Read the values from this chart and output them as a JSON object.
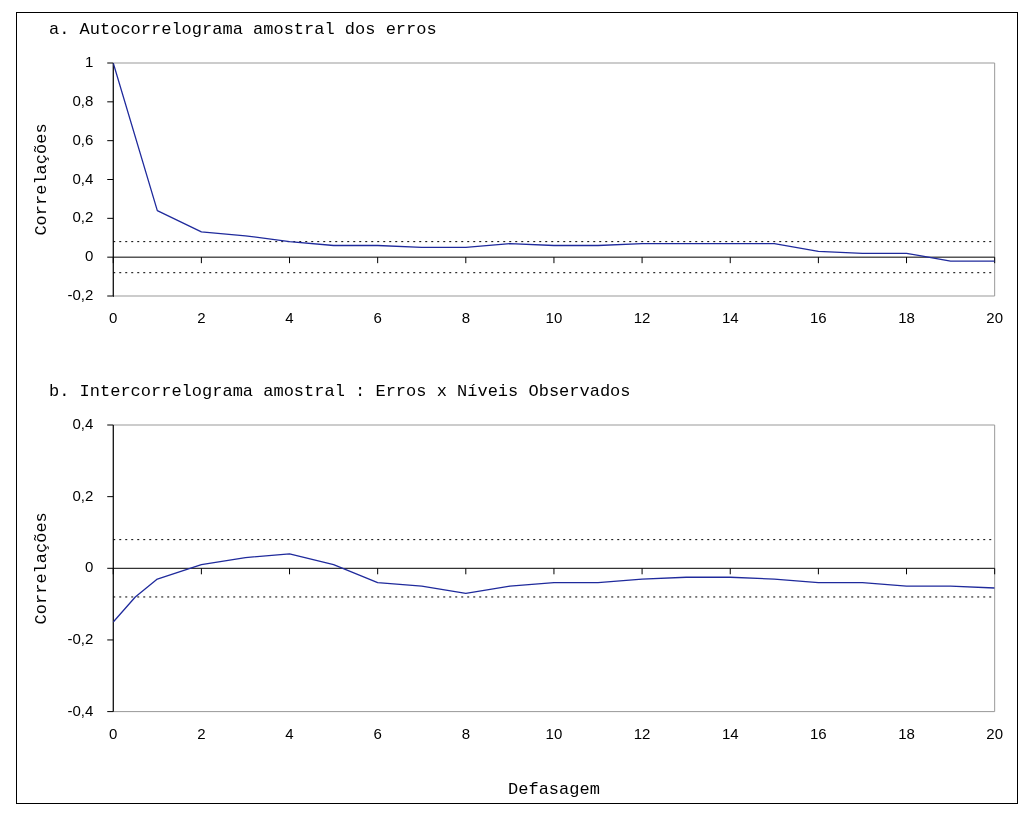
{
  "chart_data": [
    {
      "type": "line",
      "title": "a. Autocorrelograma amostral dos erros",
      "ylabel": "Correlações",
      "x": [
        0,
        1,
        2,
        3,
        4,
        5,
        6,
        7,
        8,
        9,
        10,
        11,
        12,
        13,
        14,
        15,
        16,
        17,
        18,
        19,
        20
      ],
      "series": [
        {
          "color": "#1f2a9c",
          "values": [
            1,
            0.24,
            0.13,
            0.11,
            0.08,
            0.06,
            0.06,
            0.05,
            0.05,
            0.07,
            0.06,
            0.06,
            0.07,
            0.07,
            0.07,
            0.07,
            0.03,
            0.02,
            0.02,
            -0.02,
            -0.02
          ]
        }
      ],
      "xlim": [
        0,
        20
      ],
      "xticks": [
        0,
        2,
        4,
        6,
        8,
        10,
        12,
        14,
        16,
        18,
        20
      ],
      "ylim": [
        -0.2,
        1
      ],
      "yticks": [
        {
          "value": -0.2,
          "label": "-0,2"
        },
        {
          "value": 0,
          "label": "0"
        },
        {
          "value": 0.2,
          "label": "0,2"
        },
        {
          "value": 0.4,
          "label": "0,4"
        },
        {
          "value": 0.6,
          "label": "0,6"
        },
        {
          "value": 0.8,
          "label": "0,8"
        },
        {
          "value": 1,
          "label": "1"
        }
      ],
      "ref_lines": [
        {
          "axis": "y",
          "value": 0,
          "color": "#000000",
          "line_style": "solid"
        },
        {
          "axis": "y",
          "value": 0.08,
          "color": "#000000",
          "line_style": "dotted"
        },
        {
          "axis": "y",
          "value": -0.08,
          "color": "#000000",
          "line_style": "dotted"
        }
      ],
      "grid": false,
      "legend": false,
      "marker": "none",
      "line_style": "solid"
    },
    {
      "type": "line",
      "title": "b. Intercorrelograma amostral : Erros x Níveis Observados",
      "xlabel": "Defasagem",
      "ylabel": "Correlações",
      "x": [
        0,
        0.5,
        1,
        1.5,
        2,
        3,
        4,
        5,
        6,
        7,
        8,
        9,
        10,
        11,
        12,
        13,
        14,
        15,
        16,
        17,
        18,
        19,
        20
      ],
      "series": [
        {
          "color": "#1f2a9c",
          "values": [
            -0.15,
            -0.08,
            -0.03,
            -0.01,
            0.01,
            0.03,
            0.04,
            0.01,
            -0.04,
            -0.05,
            -0.07,
            -0.05,
            -0.04,
            -0.04,
            -0.03,
            -0.025,
            -0.025,
            -0.03,
            -0.04,
            -0.04,
            -0.05,
            -0.05,
            -0.055
          ]
        }
      ],
      "xlim": [
        0,
        20
      ],
      "xticks": [
        0,
        2,
        4,
        6,
        8,
        10,
        12,
        14,
        16,
        18,
        20
      ],
      "ylim": [
        -0.4,
        0.4
      ],
      "yticks": [
        {
          "value": -0.4,
          "label": "-0,4"
        },
        {
          "value": -0.2,
          "label": "-0,2"
        },
        {
          "value": 0,
          "label": "0"
        },
        {
          "value": 0.2,
          "label": "0,2"
        },
        {
          "value": 0.4,
          "label": "0,4"
        }
      ],
      "ref_lines": [
        {
          "axis": "y",
          "value": 0,
          "color": "#000000",
          "line_style": "solid"
        },
        {
          "axis": "y",
          "value": 0.08,
          "color": "#000000",
          "line_style": "dotted"
        },
        {
          "axis": "y",
          "value": -0.08,
          "color": "#000000",
          "line_style": "dotted"
        }
      ],
      "grid": false,
      "legend": false,
      "marker": "none",
      "line_style": "solid"
    }
  ]
}
